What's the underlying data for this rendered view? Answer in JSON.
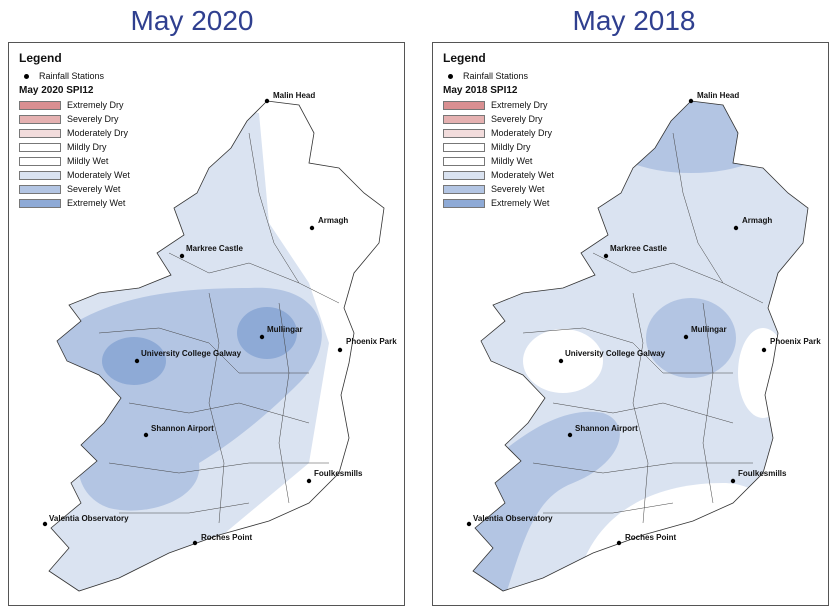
{
  "panels": [
    {
      "title": "May 2020",
      "legend": {
        "title": "Legend",
        "stations_label": "Rainfall Stations",
        "subtitle": "May 2020 SPI12",
        "classes": [
          {
            "label": "Extremely Dry",
            "color": "#d98f91"
          },
          {
            "label": "Severely Dry",
            "color": "#e5b1b1"
          },
          {
            "label": "Moderately Dry",
            "color": "#f2dcdc"
          },
          {
            "label": "Mildly Dry",
            "color": "#ffffff"
          },
          {
            "label": "Mildly Wet",
            "color": "#ffffff"
          },
          {
            "label": "Moderately Wet",
            "color": "#dae3f1"
          },
          {
            "label": "Severely Wet",
            "color": "#b3c5e3"
          },
          {
            "label": "Extremely Wet",
            "color": "#8eaad6"
          }
        ]
      },
      "stations": [
        {
          "name": "Malin Head"
        },
        {
          "name": "Armagh"
        },
        {
          "name": "Markree Castle"
        },
        {
          "name": "Mullingar"
        },
        {
          "name": "Phoenix Park"
        },
        {
          "name": "University College Galway"
        },
        {
          "name": "Shannon Airport"
        },
        {
          "name": "Foulkesmills"
        },
        {
          "name": "Valentia Observatory"
        },
        {
          "name": "Roches Point"
        }
      ]
    },
    {
      "title": "May 2018",
      "legend": {
        "title": "Legend",
        "stations_label": "Rainfall Stations",
        "subtitle": "May 2018 SPI12",
        "classes": [
          {
            "label": "Extremely Dry",
            "color": "#d98f91"
          },
          {
            "label": "Severely Dry",
            "color": "#e5b1b1"
          },
          {
            "label": "Moderately Dry",
            "color": "#f2dcdc"
          },
          {
            "label": "Mildly Dry",
            "color": "#ffffff"
          },
          {
            "label": "Mildly Wet",
            "color": "#ffffff"
          },
          {
            "label": "Moderately Wet",
            "color": "#dae3f1"
          },
          {
            "label": "Severely Wet",
            "color": "#b3c5e3"
          },
          {
            "label": "Extremely Wet",
            "color": "#8eaad6"
          }
        ]
      },
      "stations": [
        {
          "name": "Malin Head"
        },
        {
          "name": "Armagh"
        },
        {
          "name": "Markree Castle"
        },
        {
          "name": "Mullingar"
        },
        {
          "name": "Phoenix Park"
        },
        {
          "name": "University College Galway"
        },
        {
          "name": "Shannon Airport"
        },
        {
          "name": "Foulkesmills"
        },
        {
          "name": "Valentia Observatory"
        },
        {
          "name": "Roches Point"
        }
      ]
    }
  ]
}
